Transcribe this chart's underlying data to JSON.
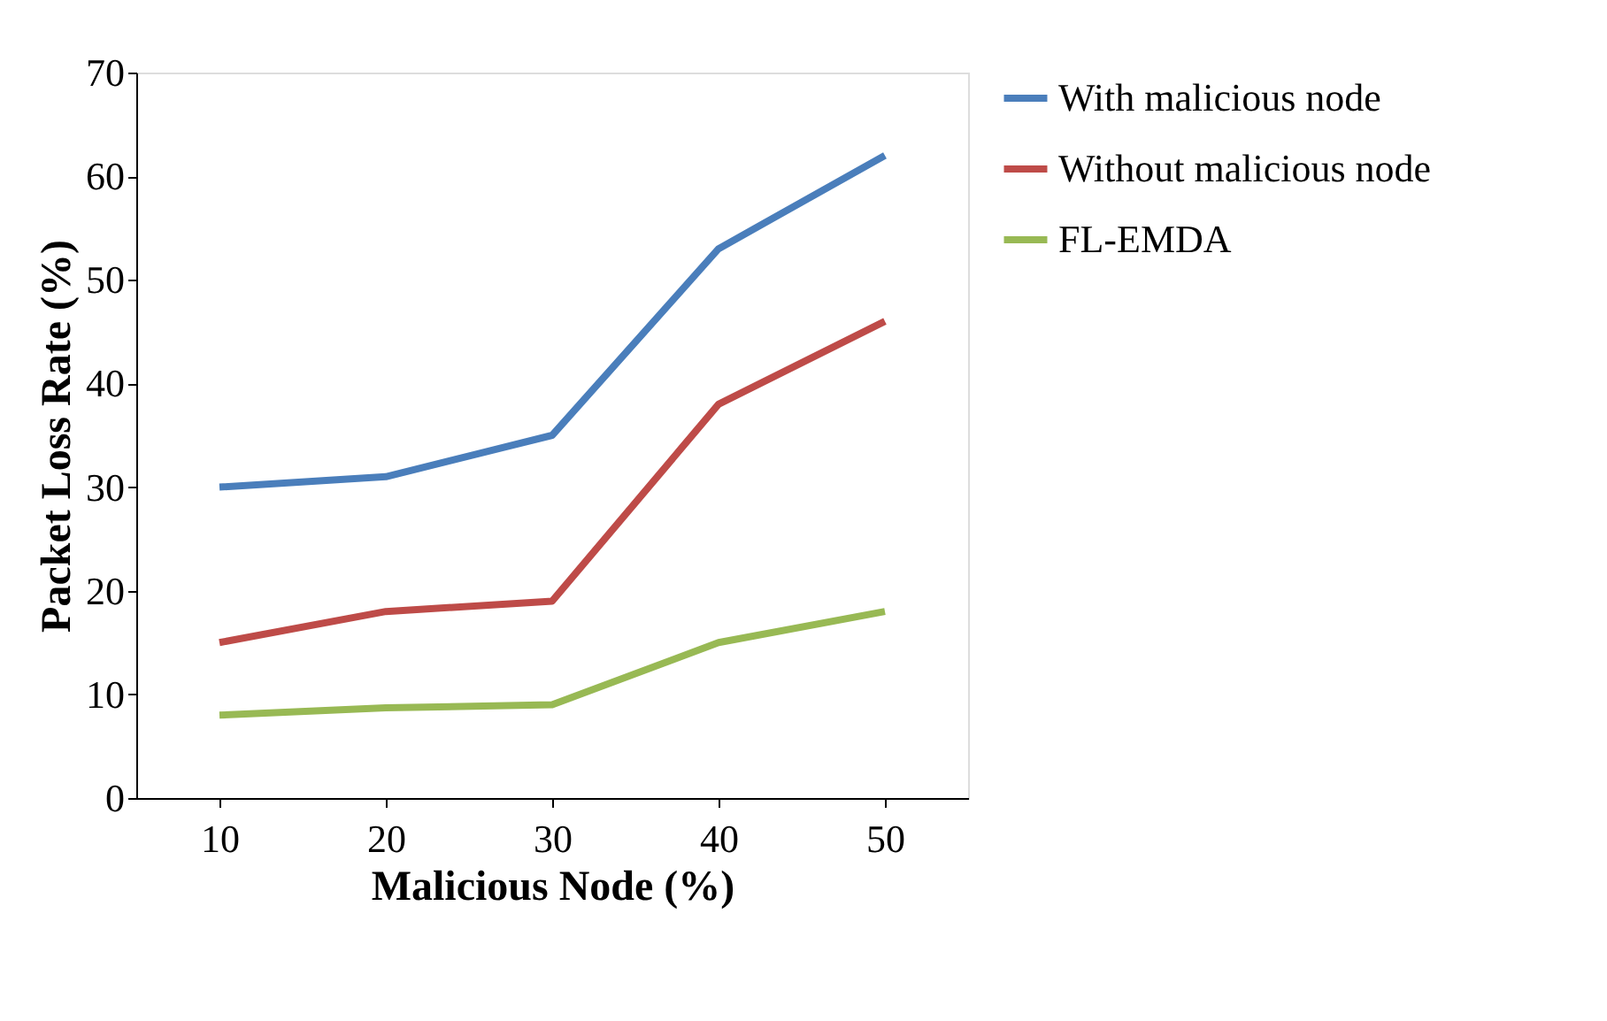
{
  "chart_data": {
    "type": "line",
    "xlabel": "Malicious Node (%)",
    "ylabel": "Packet Loss Rate (%)",
    "categories": [
      "10",
      "20",
      "30",
      "40",
      "50"
    ],
    "series": [
      {
        "name": "With malicious node",
        "color": "#4a7ebb",
        "values": [
          30,
          31,
          35,
          53,
          62
        ]
      },
      {
        "name": "Without malicious node",
        "color": "#be4b48",
        "values": [
          15,
          18,
          19,
          38,
          46
        ]
      },
      {
        "name": "FL-EMDA",
        "color": "#98b954",
        "values": [
          8,
          8.7,
          9,
          15,
          18
        ]
      }
    ],
    "ylim": [
      0,
      70
    ],
    "yticks": [
      0,
      10,
      20,
      30,
      40,
      50,
      60,
      70
    ],
    "grid": false,
    "legend": "right",
    "marker": "none",
    "line_style": "solid"
  }
}
